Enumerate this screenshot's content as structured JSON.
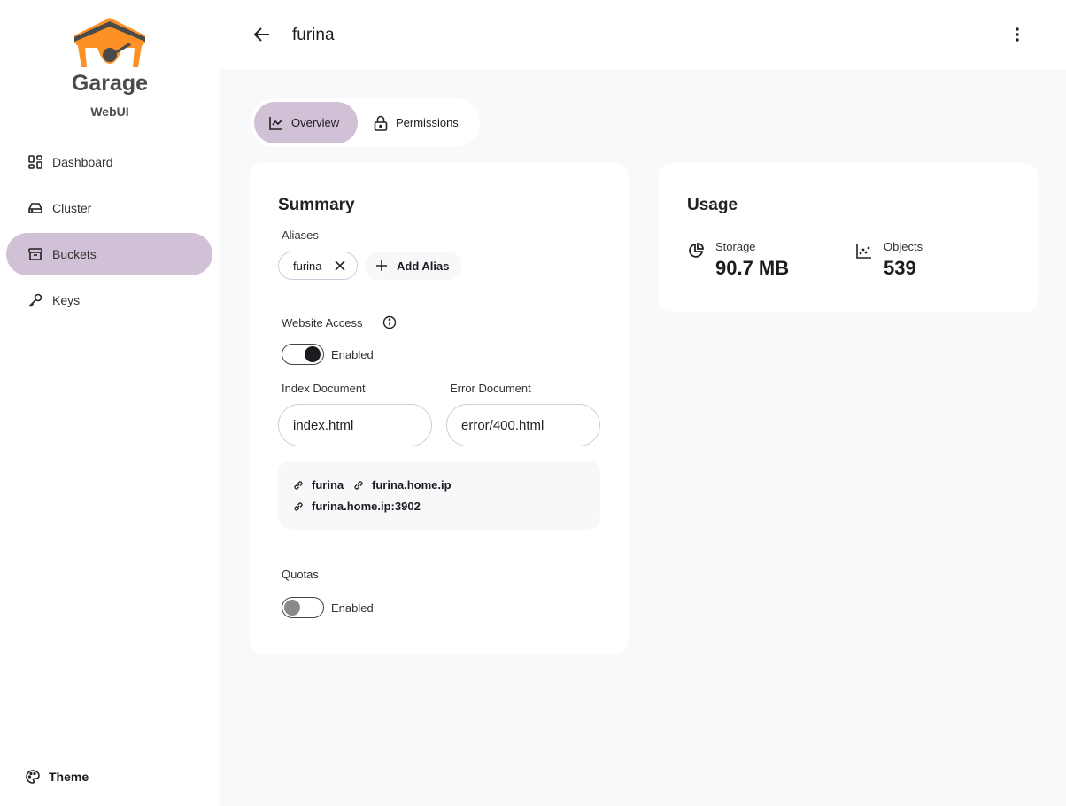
{
  "sidebar": {
    "brand": "Garage",
    "subtitle": "WebUI",
    "items": [
      {
        "label": "Dashboard",
        "icon": "dashboard-icon"
      },
      {
        "label": "Cluster",
        "icon": "hard-drive-icon"
      },
      {
        "label": "Buckets",
        "icon": "archive-icon",
        "active": true
      },
      {
        "label": "Keys",
        "icon": "key-icon"
      }
    ],
    "theme_label": "Theme"
  },
  "header": {
    "title": "furina"
  },
  "tabs": [
    {
      "label": "Overview",
      "active": true
    },
    {
      "label": "Permissions"
    }
  ],
  "summary": {
    "title": "Summary",
    "aliases_label": "Aliases",
    "aliases": [
      "furina"
    ],
    "add_alias": "Add Alias",
    "website_access_label": "Website Access",
    "website_enabled": true,
    "website_toggle_label": "Enabled",
    "index_label": "Index Document",
    "index_value": "index.html",
    "error_label": "Error Document",
    "error_value": "error/400.html",
    "links": [
      "furina",
      "furina.home.ip",
      "furina.home.ip:3902"
    ],
    "quotas_label": "Quotas",
    "quotas_enabled": false,
    "quotas_toggle_label": "Enabled"
  },
  "usage": {
    "title": "Usage",
    "storage_label": "Storage",
    "storage_value": "90.7 MB",
    "objects_label": "Objects",
    "objects_value": "539"
  },
  "colors": {
    "accent": "#d1c1d7",
    "logo_orange": "#fd9126",
    "logo_gray": "#4a4a4a"
  }
}
